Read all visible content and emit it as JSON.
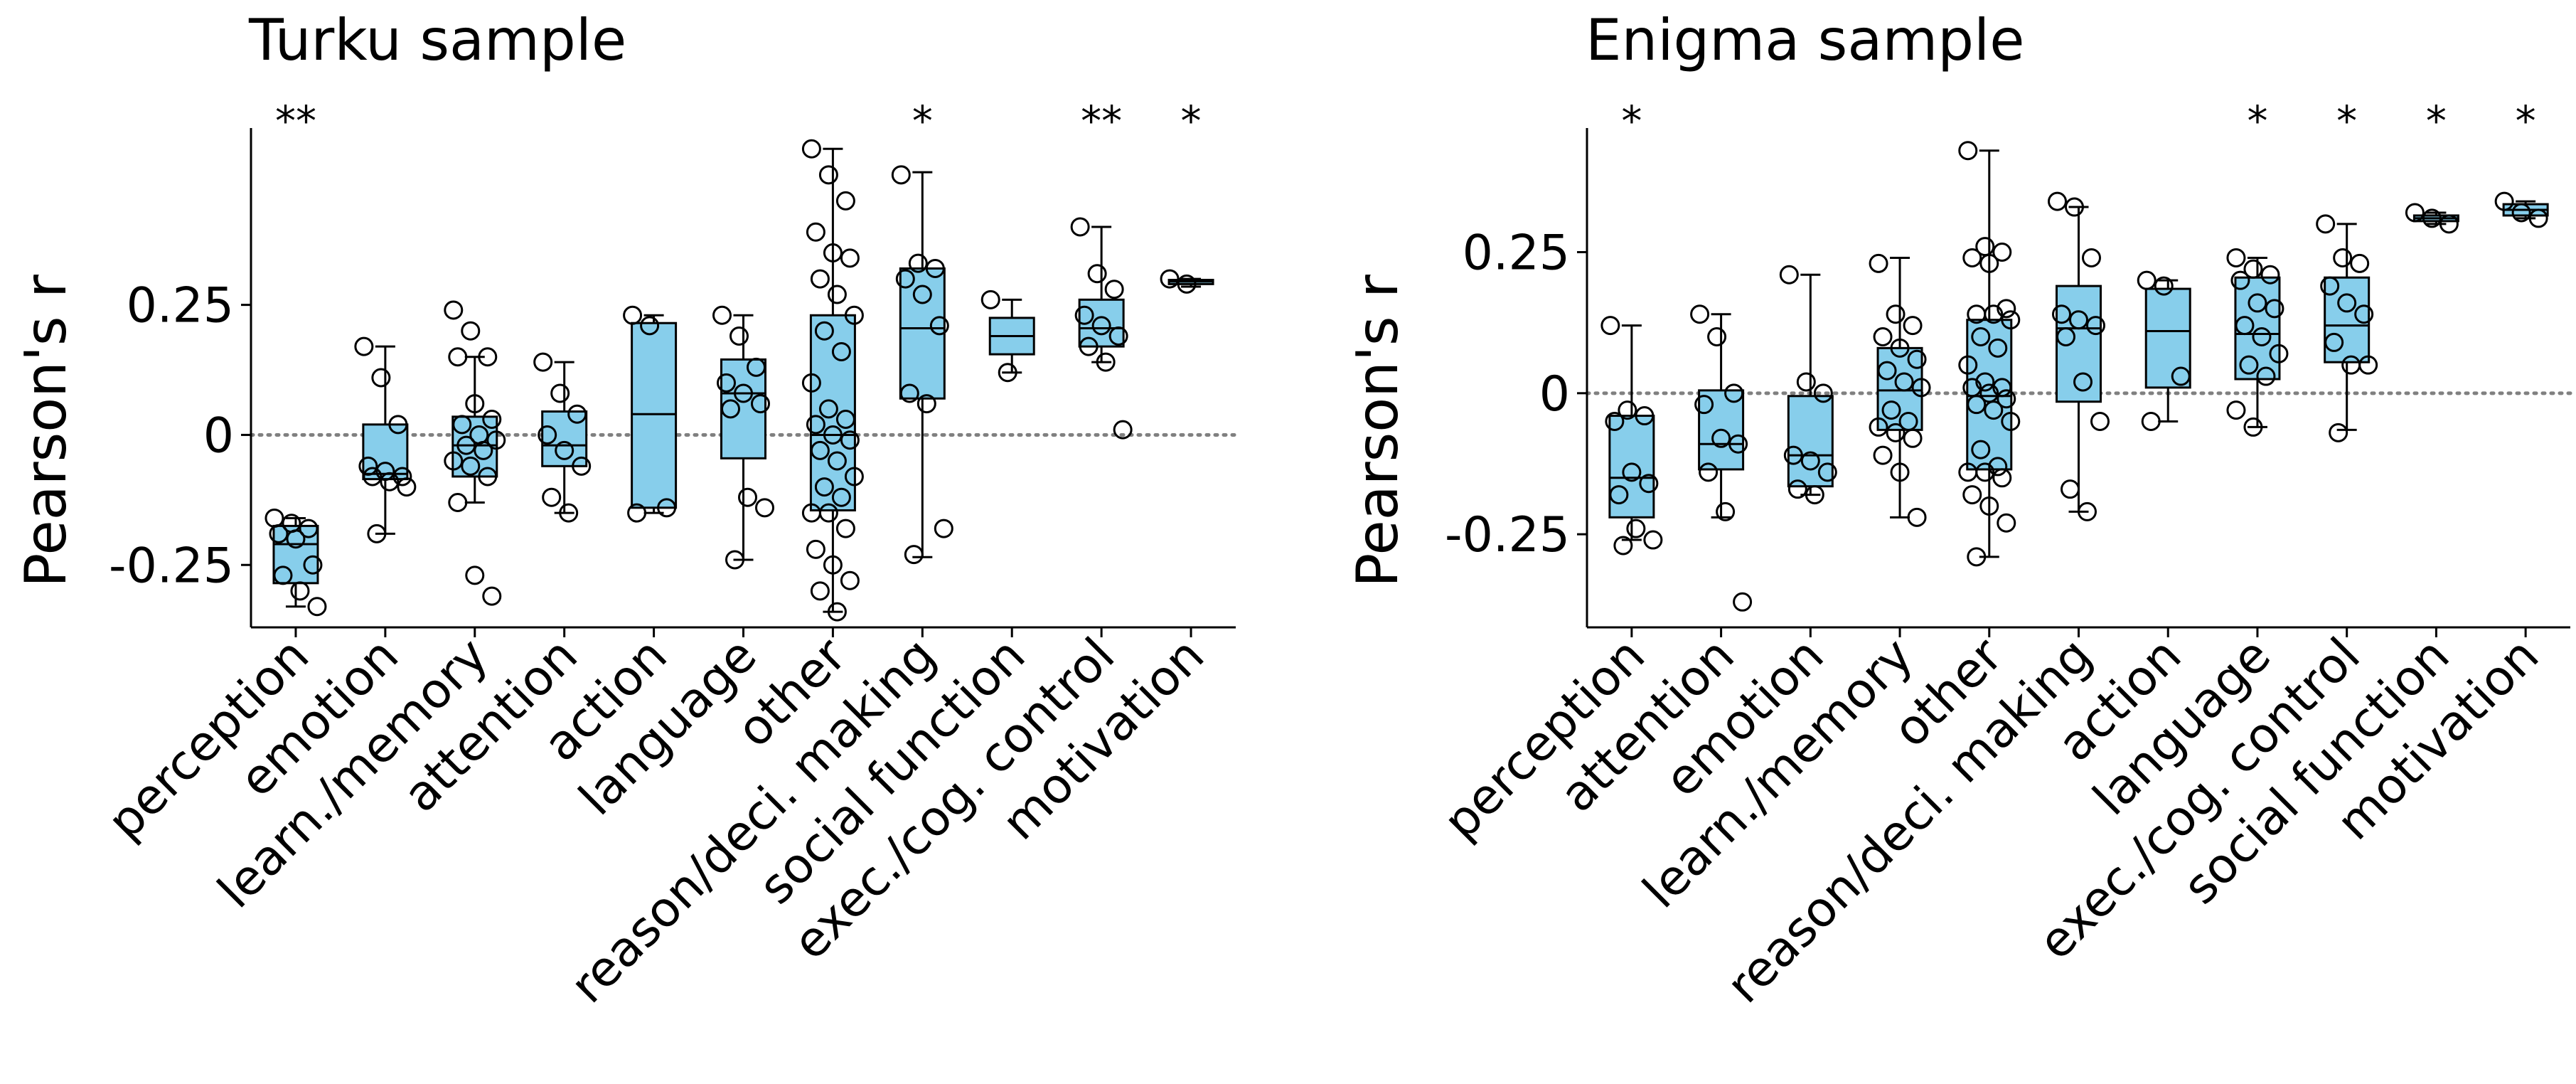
{
  "colors": {
    "box_fill": "#87ceeb",
    "edge": "#000000",
    "zero_line": "#808080",
    "background": "#ffffff"
  },
  "chart_data": [
    {
      "type": "box",
      "title": "Turku sample",
      "ylabel": "Pearson's r",
      "ylim": [
        -0.37,
        0.59
      ],
      "yticks": [
        -0.25,
        0,
        0.25
      ],
      "ytick_labels": [
        "-0.25",
        "0",
        "0.25"
      ],
      "zero_line": true,
      "grid": false,
      "categories": [
        "perception",
        "emotion",
        "learn./memory",
        "attention",
        "action",
        "language",
        "other",
        "reason/deci. making",
        "social function",
        "exec./cog. control",
        "motivation"
      ],
      "significance": [
        "**",
        "",
        "",
        "",
        "",
        "",
        "",
        "*",
        "",
        "**",
        "*"
      ],
      "boxes": [
        {
          "min": -0.33,
          "q1": -0.285,
          "median": -0.21,
          "q3": -0.175,
          "max": -0.16
        },
        {
          "min": -0.19,
          "q1": -0.085,
          "median": -0.075,
          "q3": 0.02,
          "max": 0.17
        },
        {
          "min": -0.13,
          "q1": -0.08,
          "median": -0.02,
          "q3": 0.035,
          "max": 0.15
        },
        {
          "min": -0.15,
          "q1": -0.06,
          "median": -0.02,
          "q3": 0.045,
          "max": 0.14
        },
        {
          "min": -0.15,
          "q1": -0.14,
          "median": 0.04,
          "q3": 0.215,
          "max": 0.23
        },
        {
          "min": -0.24,
          "q1": -0.045,
          "median": 0.08,
          "q3": 0.145,
          "max": 0.23
        },
        {
          "min": -0.34,
          "q1": -0.145,
          "median": 0.0,
          "q3": 0.23,
          "max": 0.55
        },
        {
          "min": -0.235,
          "q1": 0.07,
          "median": 0.205,
          "q3": 0.32,
          "max": 0.505
        },
        {
          "min": 0.12,
          "q1": 0.155,
          "median": 0.19,
          "q3": 0.225,
          "max": 0.26
        },
        {
          "min": 0.14,
          "q1": 0.17,
          "median": 0.205,
          "q3": 0.26,
          "max": 0.4
        },
        {
          "min": 0.285,
          "q1": 0.29,
          "median": 0.295,
          "q3": 0.298,
          "max": 0.3
        }
      ],
      "points": [
        [
          -0.16,
          -0.17,
          -0.18,
          -0.19,
          -0.2,
          -0.25,
          -0.27,
          -0.3,
          -0.33
        ],
        [
          0.17,
          0.11,
          0.02,
          -0.06,
          -0.07,
          -0.08,
          -0.08,
          -0.09,
          -0.1,
          -0.19
        ],
        [
          0.24,
          0.2,
          0.15,
          0.15,
          0.06,
          0.03,
          0.02,
          0.0,
          -0.01,
          -0.02,
          -0.03,
          -0.05,
          -0.06,
          -0.08,
          -0.13,
          -0.27,
          -0.31
        ],
        [
          0.14,
          0.08,
          0.04,
          0.0,
          -0.03,
          -0.06,
          -0.12,
          -0.15
        ],
        [
          0.23,
          0.21,
          -0.14,
          -0.15
        ],
        [
          0.23,
          0.19,
          0.13,
          0.1,
          0.08,
          0.06,
          0.05,
          -0.12,
          -0.14,
          -0.24
        ],
        [
          0.55,
          0.5,
          0.45,
          0.39,
          0.35,
          0.34,
          0.3,
          0.27,
          0.23,
          0.2,
          0.16,
          0.1,
          0.05,
          0.03,
          0.02,
          0.0,
          -0.01,
          -0.03,
          -0.05,
          -0.08,
          -0.1,
          -0.12,
          -0.15,
          -0.15,
          -0.18,
          -0.22,
          -0.25,
          -0.28,
          -0.3,
          -0.34
        ],
        [
          0.5,
          0.33,
          0.32,
          0.3,
          0.27,
          0.21,
          0.08,
          0.06,
          -0.18,
          -0.23
        ],
        [
          0.26,
          0.12
        ],
        [
          0.4,
          0.31,
          0.28,
          0.23,
          0.21,
          0.19,
          0.17,
          0.14,
          0.01
        ],
        [
          0.3,
          0.29
        ]
      ]
    },
    {
      "type": "box",
      "title": "Enigma sample",
      "ylabel": "Pearson's r",
      "ylim": [
        -0.415,
        0.47
      ],
      "yticks": [
        -0.25,
        0,
        0.25
      ],
      "ytick_labels": [
        "-0.25",
        "0",
        "0.25"
      ],
      "zero_line": true,
      "grid": false,
      "categories": [
        "perception",
        "attention",
        "emotion",
        "learn./memory",
        "other",
        "reason/deci. making",
        "action",
        "language",
        "exec./cog. control",
        "social function",
        "motivation"
      ],
      "significance": [
        "*",
        "",
        "",
        "",
        "",
        "",
        "",
        "*",
        "*",
        "*",
        "*"
      ],
      "boxes": [
        {
          "min": -0.26,
          "q1": -0.22,
          "median": -0.15,
          "q3": -0.04,
          "max": 0.12
        },
        {
          "min": -0.22,
          "q1": -0.135,
          "median": -0.09,
          "q3": 0.005,
          "max": 0.14
        },
        {
          "min": -0.18,
          "q1": -0.165,
          "median": -0.11,
          "q3": -0.005,
          "max": 0.21
        },
        {
          "min": -0.22,
          "q1": -0.065,
          "median": 0.005,
          "q3": 0.08,
          "max": 0.24
        },
        {
          "min": -0.29,
          "q1": -0.135,
          "median": -0.005,
          "q3": 0.13,
          "max": 0.43
        },
        {
          "min": -0.21,
          "q1": -0.015,
          "median": 0.115,
          "q3": 0.19,
          "max": 0.33
        },
        {
          "min": -0.05,
          "q1": 0.01,
          "median": 0.11,
          "q3": 0.185,
          "max": 0.2
        },
        {
          "min": -0.06,
          "q1": 0.025,
          "median": 0.105,
          "q3": 0.205,
          "max": 0.24
        },
        {
          "min": -0.065,
          "q1": 0.055,
          "median": 0.12,
          "q3": 0.205,
          "max": 0.3
        },
        {
          "min": 0.3,
          "q1": 0.305,
          "median": 0.31,
          "q3": 0.315,
          "max": 0.32
        },
        {
          "min": 0.31,
          "q1": 0.315,
          "median": 0.325,
          "q3": 0.335,
          "max": 0.34
        }
      ],
      "points": [
        [
          0.12,
          -0.03,
          -0.04,
          -0.05,
          -0.14,
          -0.16,
          -0.18,
          -0.24,
          -0.26,
          -0.27
        ],
        [
          0.14,
          0.1,
          0.0,
          -0.02,
          -0.08,
          -0.09,
          -0.14,
          -0.21,
          -0.37
        ],
        [
          0.21,
          0.02,
          0.0,
          -0.11,
          -0.12,
          -0.14,
          -0.17,
          -0.18
        ],
        [
          0.23,
          0.14,
          0.12,
          0.1,
          0.08,
          0.06,
          0.04,
          0.02,
          0.01,
          -0.03,
          -0.05,
          -0.06,
          -0.07,
          -0.08,
          -0.11,
          -0.14,
          -0.22
        ],
        [
          0.43,
          0.26,
          0.25,
          0.24,
          0.23,
          0.15,
          0.14,
          0.14,
          0.13,
          0.1,
          0.08,
          0.05,
          0.02,
          0.01,
          0.01,
          0.0,
          -0.01,
          -0.02,
          -0.03,
          -0.05,
          -0.1,
          -0.13,
          -0.14,
          -0.14,
          -0.15,
          -0.18,
          -0.2,
          -0.23,
          -0.29
        ],
        [
          0.34,
          0.33,
          0.24,
          0.14,
          0.13,
          0.12,
          0.1,
          0.02,
          -0.05,
          -0.17,
          -0.21
        ],
        [
          0.2,
          0.19,
          0.03,
          -0.05
        ],
        [
          0.24,
          0.22,
          0.21,
          0.2,
          0.16,
          0.15,
          0.12,
          0.1,
          0.07,
          0.05,
          0.03,
          -0.03,
          -0.06
        ],
        [
          0.3,
          0.24,
          0.23,
          0.19,
          0.16,
          0.14,
          0.09,
          0.05,
          0.05,
          -0.07
        ],
        [
          0.32,
          0.31,
          0.3
        ],
        [
          0.34,
          0.32,
          0.31
        ]
      ]
    }
  ]
}
